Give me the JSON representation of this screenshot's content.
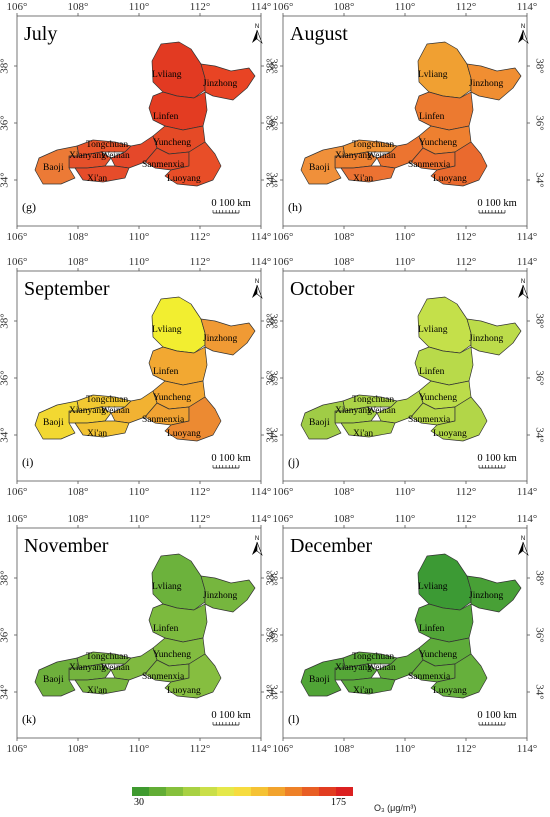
{
  "x_ticks": [
    "106°",
    "108°",
    "110°",
    "112°",
    "114°"
  ],
  "y_ticks": [
    "38°",
    "36°",
    "34°"
  ],
  "north_label": "N",
  "scale_bar": {
    "zero": "0",
    "distance": "100 km"
  },
  "cities": [
    "Lvliang",
    "Jinzhong",
    "Linfen",
    "Yuncheng",
    "Tongchuan",
    "Xianyang",
    "Weinan",
    "Sanmenxia",
    "Baoji",
    "Xi'an",
    "Luoyang"
  ],
  "panels": [
    {
      "month": "July",
      "label": "(g)",
      "colors": {
        "Lvliang": "#e23a22",
        "Jinzhong": "#e84424",
        "Linfen": "#e33c22",
        "Yuncheng": "#e54a26",
        "Tongchuan": "#e8542a",
        "Xianyang": "#e5502a",
        "Weinan": "#e5482a",
        "Sanmenxia": "#e54a28",
        "Baoji": "#ec7a36",
        "Xi'an": "#e64c2a",
        "Luoyang": "#e84e28"
      }
    },
    {
      "month": "August",
      "label": "(h)",
      "colors": {
        "Lvliang": "#f0a032",
        "Jinzhong": "#f08e32",
        "Linfen": "#ec7a30",
        "Yuncheng": "#ee8030",
        "Tongchuan": "#f09234",
        "Xianyang": "#ee8232",
        "Weinan": "#ec7430",
        "Sanmenxia": "#ec7030",
        "Baoji": "#f0903a",
        "Xi'an": "#ec7232",
        "Luoyang": "#ea6a2e"
      }
    },
    {
      "month": "September",
      "label": "(i)",
      "colors": {
        "Lvliang": "#f2ee30",
        "Jinzhong": "#f09a34",
        "Linfen": "#f2a832",
        "Yuncheng": "#f2a632",
        "Tongchuan": "#f2c832",
        "Xianyang": "#f2cc32",
        "Weinan": "#f2b232",
        "Sanmenxia": "#f0a232",
        "Baoji": "#f2d832",
        "Xi'an": "#f2c232",
        "Luoyang": "#ec8a32"
      }
    },
    {
      "month": "October",
      "label": "(j)",
      "colors": {
        "Lvliang": "#c4e04a",
        "Jinzhong": "#bcdc4a",
        "Linfen": "#b8da4a",
        "Yuncheng": "#bcdc4a",
        "Tongchuan": "#acd448",
        "Xianyang": "#a6d246",
        "Weinan": "#b4d848",
        "Sanmenxia": "#b6d848",
        "Baoji": "#a0cc46",
        "Xi'an": "#aad246",
        "Luoyang": "#b2d648"
      }
    },
    {
      "month": "November",
      "label": "(k)",
      "colors": {
        "Lvliang": "#6cb23c",
        "Jinzhong": "#76b63e",
        "Linfen": "#7cba3e",
        "Yuncheng": "#82bc40",
        "Tongchuan": "#78b63e",
        "Xianyang": "#74b43e",
        "Weinan": "#80ba40",
        "Sanmenxia": "#84bc40",
        "Baoji": "#6eb03c",
        "Xi'an": "#78b63e",
        "Luoyang": "#86be40"
      }
    },
    {
      "month": "December",
      "label": "(l)",
      "colors": {
        "Lvliang": "#3c9a34",
        "Jinzhong": "#48a036",
        "Linfen": "#52a638",
        "Yuncheng": "#5eac3a",
        "Tongchuan": "#58a838",
        "Xianyang": "#56a838",
        "Weinan": "#60ac3a",
        "Sanmenxia": "#66b03a",
        "Baoji": "#50a436",
        "Xi'an": "#5aaa3a",
        "Luoyang": "#66b03c"
      }
    }
  ],
  "legend": {
    "min": "30",
    "max": "175",
    "unit": "O₃ (μg/m³)",
    "colors": [
      "#3f9a2f",
      "#62ad35",
      "#86c03c",
      "#a8d143",
      "#cadf48",
      "#e5e84a",
      "#f6dc3f",
      "#f5c234",
      "#f2a32d",
      "#ee8128",
      "#e85e24",
      "#e23c20",
      "#db2020"
    ]
  }
}
